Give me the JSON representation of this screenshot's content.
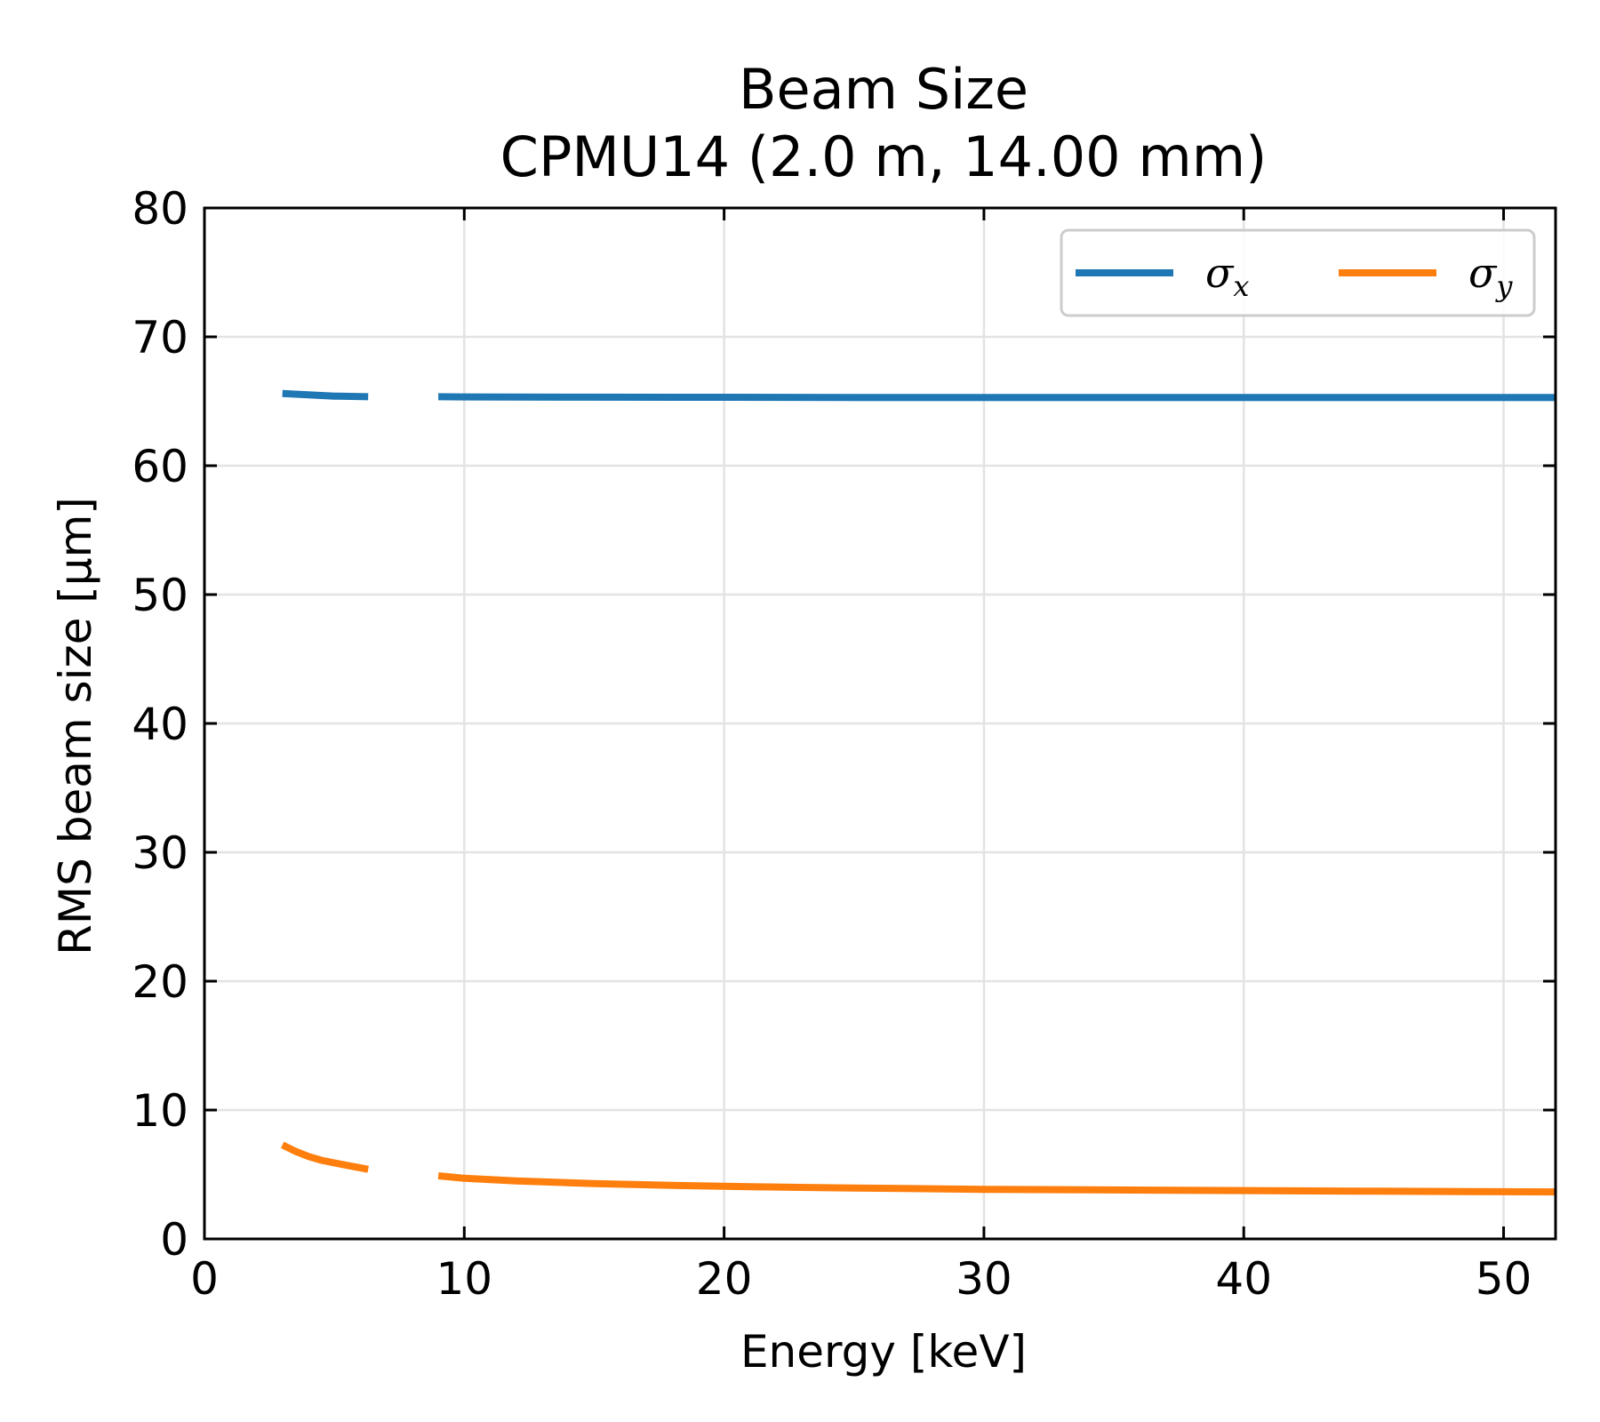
{
  "chart_data": {
    "type": "line",
    "title": [
      "Beam Size",
      "CPMU14 (2.0 m, 14.00 mm)"
    ],
    "xlabel": "Energy [keV]",
    "ylabel": "RMS beam size [µm]",
    "xlim": [
      0,
      52
    ],
    "ylim": [
      0,
      80
    ],
    "xticks": [
      "0",
      "10",
      "20",
      "30",
      "40",
      "50"
    ],
    "yticks": [
      "0",
      "10",
      "20",
      "30",
      "40",
      "50",
      "60",
      "70",
      "80"
    ],
    "grid": true,
    "legend": {
      "placement": "top-right",
      "columns": 2
    },
    "series": [
      {
        "name": "σx",
        "name_base": "σ",
        "name_sub": "x",
        "color": "#1f77b4",
        "segments": [
          {
            "x": [
              3,
              4,
              5,
              6.3
            ],
            "y": [
              65.6,
              65.5,
              65.4,
              65.35
            ]
          },
          {
            "x": [
              9,
              10,
              15,
              20,
              25,
              30,
              35,
              40,
              45,
              52
            ],
            "y": [
              65.35,
              65.34,
              65.32,
              65.31,
              65.3,
              65.3,
              65.3,
              65.3,
              65.3,
              65.3
            ]
          }
        ]
      },
      {
        "name": "σy",
        "name_base": "σ",
        "name_sub": "y",
        "color": "#ff7f0e",
        "segments": [
          {
            "x": [
              3,
              3.5,
              4,
              4.5,
              5,
              5.5,
              6.3
            ],
            "y": [
              7.3,
              6.8,
              6.4,
              6.1,
              5.9,
              5.7,
              5.4
            ]
          },
          {
            "x": [
              9,
              10,
              12,
              15,
              18,
              21,
              25,
              30,
              35,
              40,
              45,
              52
            ],
            "y": [
              4.9,
              4.7,
              4.5,
              4.3,
              4.15,
              4.05,
              3.95,
              3.85,
              3.8,
              3.75,
              3.7,
              3.65
            ]
          }
        ]
      }
    ]
  }
}
